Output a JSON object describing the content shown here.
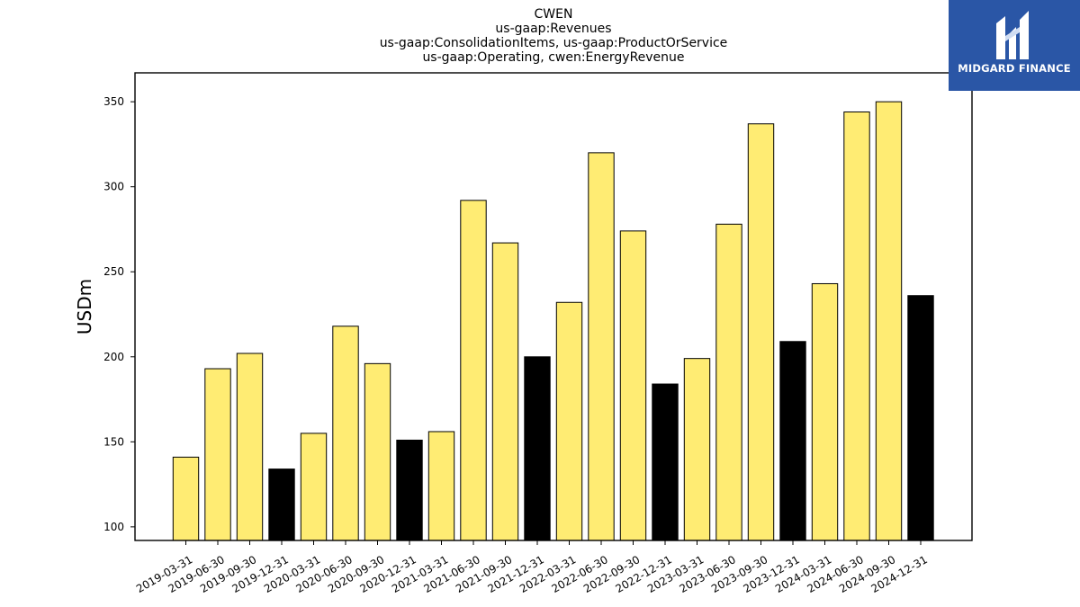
{
  "logo": {
    "text": "MIDGARD FINANCE",
    "background": "#2a56a6"
  },
  "chart_data": {
    "type": "bar",
    "title_lines": [
      "CWEN",
      "us-gaap:Revenues",
      "us-gaap:ConsolidationItems, us-gaap:ProductOrService",
      "us-gaap:Operating, cwen:EnergyRevenue"
    ],
    "xlabel": "",
    "ylabel": "USDm",
    "ylim": [
      92,
      367
    ],
    "yticks": [
      100,
      150,
      200,
      250,
      300,
      350
    ],
    "categories": [
      "2019-03-31",
      "2019-06-30",
      "2019-09-30",
      "2019-12-31",
      "2020-03-31",
      "2020-06-30",
      "2020-09-30",
      "2020-12-31",
      "2021-03-31",
      "2021-06-30",
      "2021-09-30",
      "2021-12-31",
      "2022-03-31",
      "2022-06-30",
      "2022-09-30",
      "2022-12-31",
      "2023-03-31",
      "2023-06-30",
      "2023-09-30",
      "2023-12-31",
      "2024-03-31",
      "2024-06-30",
      "2024-09-30",
      "2024-12-31"
    ],
    "values": [
      141,
      193,
      202,
      134,
      155,
      218,
      196,
      151,
      156,
      292,
      267,
      200,
      232,
      320,
      274,
      184,
      199,
      278,
      337,
      209,
      243,
      344,
      350,
      236
    ],
    "colors": {
      "quarter": "#ffec73",
      "year_end": "#000000",
      "edge": "#000000"
    },
    "grid": false,
    "legend": "none"
  }
}
